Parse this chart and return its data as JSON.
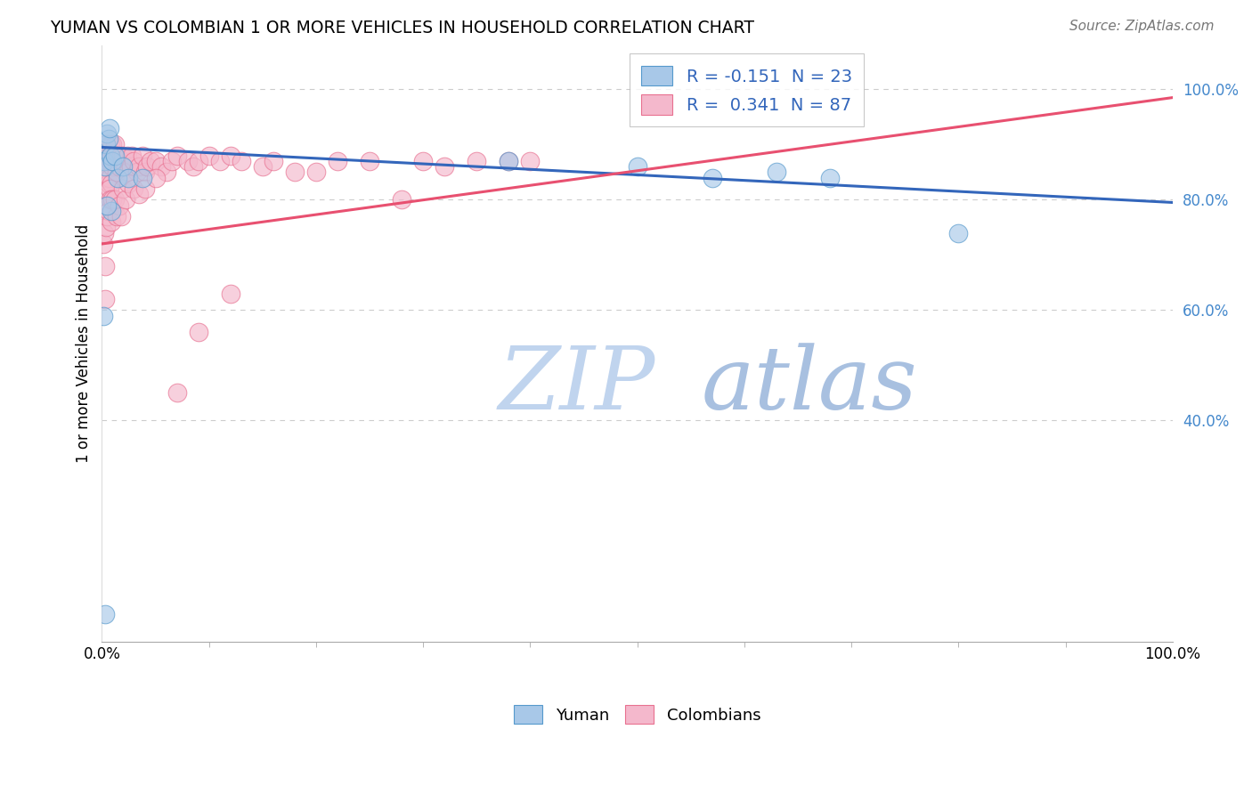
{
  "title": "YUMAN VS COLOMBIAN 1 OR MORE VEHICLES IN HOUSEHOLD CORRELATION CHART",
  "source": "Source: ZipAtlas.com",
  "ylabel": "1 or more Vehicles in Household",
  "legend_yuman_R": "-0.151",
  "legend_yuman_N": "23",
  "legend_colombian_R": "0.341",
  "legend_colombian_N": "87",
  "yuman_fill_color": "#A8C8E8",
  "yuman_edge_color": "#5599CC",
  "colombian_fill_color": "#F4B8CC",
  "colombian_edge_color": "#E87090",
  "yuman_line_color": "#3366BB",
  "colombian_line_color": "#E85070",
  "watermark_zip_color": "#C0D4EE",
  "watermark_atlas_color": "#A8C0E0",
  "ytick_color": "#4488CC",
  "xlim": [
    0.0,
    1.0
  ],
  "ylim": [
    0.0,
    1.08
  ],
  "yuman_x": [
    0.002,
    0.003,
    0.004,
    0.005,
    0.006,
    0.007,
    0.008,
    0.009,
    0.01,
    0.012,
    0.015,
    0.02,
    0.025,
    0.038,
    0.38,
    0.5,
    0.57,
    0.63,
    0.68,
    0.8,
    0.001,
    0.003,
    0.005
  ],
  "yuman_y": [
    0.87,
    0.86,
    0.9,
    0.92,
    0.91,
    0.93,
    0.88,
    0.78,
    0.87,
    0.88,
    0.84,
    0.86,
    0.84,
    0.84,
    0.87,
    0.86,
    0.84,
    0.85,
    0.84,
    0.74,
    0.59,
    0.05,
    0.79
  ],
  "colombian_x": [
    0.001,
    0.002,
    0.003,
    0.003,
    0.004,
    0.005,
    0.005,
    0.006,
    0.006,
    0.007,
    0.007,
    0.008,
    0.008,
    0.009,
    0.009,
    0.01,
    0.01,
    0.011,
    0.012,
    0.013,
    0.014,
    0.015,
    0.016,
    0.018,
    0.019,
    0.02,
    0.022,
    0.024,
    0.025,
    0.027,
    0.028,
    0.03,
    0.033,
    0.035,
    0.038,
    0.04,
    0.042,
    0.045,
    0.05,
    0.055,
    0.06,
    0.065,
    0.07,
    0.08,
    0.085,
    0.09,
    0.1,
    0.11,
    0.12,
    0.13,
    0.15,
    0.16,
    0.18,
    0.2,
    0.22,
    0.25,
    0.28,
    0.3,
    0.32,
    0.35,
    0.38,
    0.4,
    0.001,
    0.002,
    0.003,
    0.003,
    0.004,
    0.005,
    0.006,
    0.007,
    0.008,
    0.009,
    0.01,
    0.012,
    0.014,
    0.016,
    0.018,
    0.02,
    0.022,
    0.025,
    0.03,
    0.035,
    0.04,
    0.05,
    0.07,
    0.09,
    0.12
  ],
  "colombian_y": [
    0.82,
    0.88,
    0.9,
    0.85,
    0.88,
    0.9,
    0.84,
    0.88,
    0.83,
    0.88,
    0.84,
    0.9,
    0.87,
    0.88,
    0.83,
    0.9,
    0.86,
    0.88,
    0.9,
    0.87,
    0.85,
    0.88,
    0.86,
    0.88,
    0.87,
    0.88,
    0.86,
    0.88,
    0.85,
    0.86,
    0.88,
    0.87,
    0.85,
    0.86,
    0.88,
    0.85,
    0.86,
    0.87,
    0.87,
    0.86,
    0.85,
    0.87,
    0.88,
    0.87,
    0.86,
    0.87,
    0.88,
    0.87,
    0.88,
    0.87,
    0.86,
    0.87,
    0.85,
    0.85,
    0.87,
    0.87,
    0.8,
    0.87,
    0.86,
    0.87,
    0.87,
    0.87,
    0.72,
    0.74,
    0.68,
    0.62,
    0.75,
    0.77,
    0.78,
    0.82,
    0.8,
    0.76,
    0.8,
    0.8,
    0.77,
    0.79,
    0.77,
    0.82,
    0.8,
    0.83,
    0.82,
    0.81,
    0.82,
    0.84,
    0.45,
    0.56,
    0.63
  ],
  "yuman_trend_x": [
    0.0,
    1.0
  ],
  "yuman_trend_y": [
    0.895,
    0.795
  ],
  "colombian_trend_x": [
    0.0,
    1.0
  ],
  "colombian_trend_y": [
    0.72,
    0.985
  ]
}
